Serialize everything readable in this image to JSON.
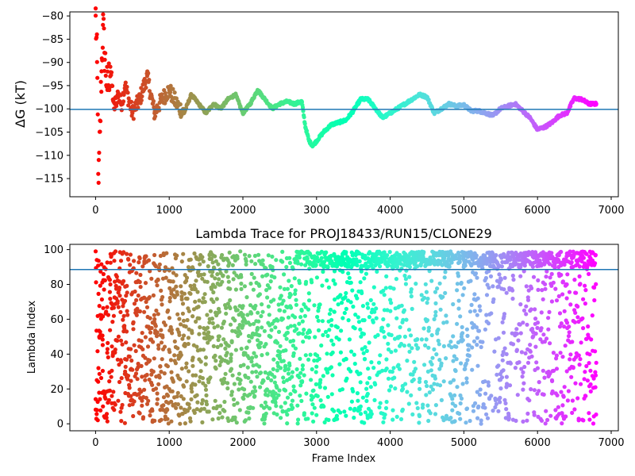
{
  "chart_data": [
    {
      "type": "scatter",
      "title": "",
      "xlabel": "",
      "ylabel": "ΔG (kT)",
      "xlim": [
        -350,
        7100
      ],
      "ylim": [
        -119,
        -79.2
      ],
      "xticks": [
        0,
        1000,
        2000,
        3000,
        4000,
        5000,
        6000,
        7000
      ],
      "xtick_labels": [
        "0",
        "1000",
        "2000",
        "3000",
        "4000",
        "5000",
        "6000",
        "7000"
      ],
      "yticks": [
        -115,
        -110,
        -105,
        -100,
        -95,
        -90,
        -85,
        -80
      ],
      "ytick_labels": [
        "−115",
        "−110",
        "−105",
        "−100",
        "−95",
        "−90",
        "−85",
        "−80"
      ],
      "grid": false,
      "colormap": "rainbow (frame index: late = violet, early = red)",
      "hline": {
        "y": -100.2,
        "color": "#1f77b4"
      },
      "series": [
        {
          "x": [
            0,
            20,
            40,
            60,
            80,
            100,
            120,
            160,
            200,
            250,
            300,
            350,
            400,
            500,
            600,
            700,
            800,
            900,
            1000,
            1100,
            1200,
            1300,
            1400,
            1500,
            1600,
            1700,
            1800,
            1900,
            2000,
            2100,
            2200,
            2300,
            2400,
            2500,
            2600,
            2700,
            2800,
            2850,
            2900,
            2950,
            3000,
            3100,
            3200,
            3300,
            3400,
            3500,
            3600,
            3700,
            3800,
            3900,
            4000,
            4100,
            4200,
            4300,
            4400,
            4500,
            4600,
            4700,
            4800,
            4900,
            5000,
            5100,
            5200,
            5300,
            5400,
            5500,
            5600,
            5700,
            5800,
            5900,
            6000,
            6100,
            6200,
            6300,
            6400,
            6500,
            6600,
            6700,
            6800
          ],
          "y": [
            -80,
            -90,
            -116,
            -105,
            -92,
            -82,
            -88,
            -96,
            -91,
            -100,
            -97,
            -99,
            -95,
            -101,
            -98,
            -93,
            -101,
            -98,
            -96,
            -99,
            -101,
            -97,
            -99,
            -101,
            -99,
            -100,
            -98,
            -97,
            -101,
            -99,
            -96,
            -98,
            -100,
            -99,
            -98.5,
            -99,
            -98.5,
            -104,
            -107,
            -108,
            -107,
            -105,
            -103.5,
            -103,
            -102.5,
            -100.5,
            -98,
            -98,
            -100,
            -102,
            -101,
            -100,
            -99,
            -98,
            -97,
            -97.5,
            -101,
            -100,
            -99,
            -99.5,
            -99.2,
            -100.5,
            -100.5,
            -101,
            -101.5,
            -100,
            -99.5,
            -99,
            -100.5,
            -102,
            -104.5,
            -104,
            -103,
            -101.5,
            -101,
            -97.8,
            -98,
            -99,
            -99
          ]
        }
      ]
    },
    {
      "type": "scatter",
      "title": "Lambda Trace for PROJ18433/RUN15/CLONE29",
      "xlabel": "Frame Index",
      "ylabel": "Lambda Index",
      "xlim": [
        -350,
        7100
      ],
      "ylim": [
        -4,
        103
      ],
      "xticks": [
        0,
        1000,
        2000,
        3000,
        4000,
        5000,
        6000,
        7000
      ],
      "xtick_labels": [
        "0",
        "1000",
        "2000",
        "3000",
        "4000",
        "5000",
        "6000",
        "7000"
      ],
      "yticks": [
        0,
        20,
        40,
        60,
        80,
        100
      ],
      "ytick_labels": [
        "0",
        "20",
        "40",
        "60",
        "80",
        "100"
      ],
      "grid": false,
      "colormap": "rainbow (frame index: late = violet, early = red)",
      "hline": {
        "y": 88.5,
        "color": "#1f77b4"
      },
      "series": [
        {
          "x": [
            0,
            50,
            100,
            200,
            400,
            600,
            800,
            1000,
            1200,
            1400,
            1600,
            1800,
            2000,
            2200,
            2400,
            2600,
            2800,
            2900,
            3000,
            3200,
            3400,
            3600,
            3700,
            3800,
            4000,
            4200,
            4400,
            4600,
            4800,
            5000,
            5200,
            5400,
            5600,
            5800,
            6000,
            6200,
            6400,
            6600,
            6800
          ],
          "y": [
            99,
            50,
            10,
            80,
            30,
            95,
            60,
            20,
            45,
            85,
            70,
            35,
            15,
            55,
            90,
            25,
            65,
            98,
            5,
            40,
            75,
            10,
            95,
            50,
            30,
            85,
            20,
            60,
            45,
            90,
            10,
            70,
            35,
            95,
            55,
            25,
            80,
            60,
            35
          ]
        }
      ]
    }
  ]
}
